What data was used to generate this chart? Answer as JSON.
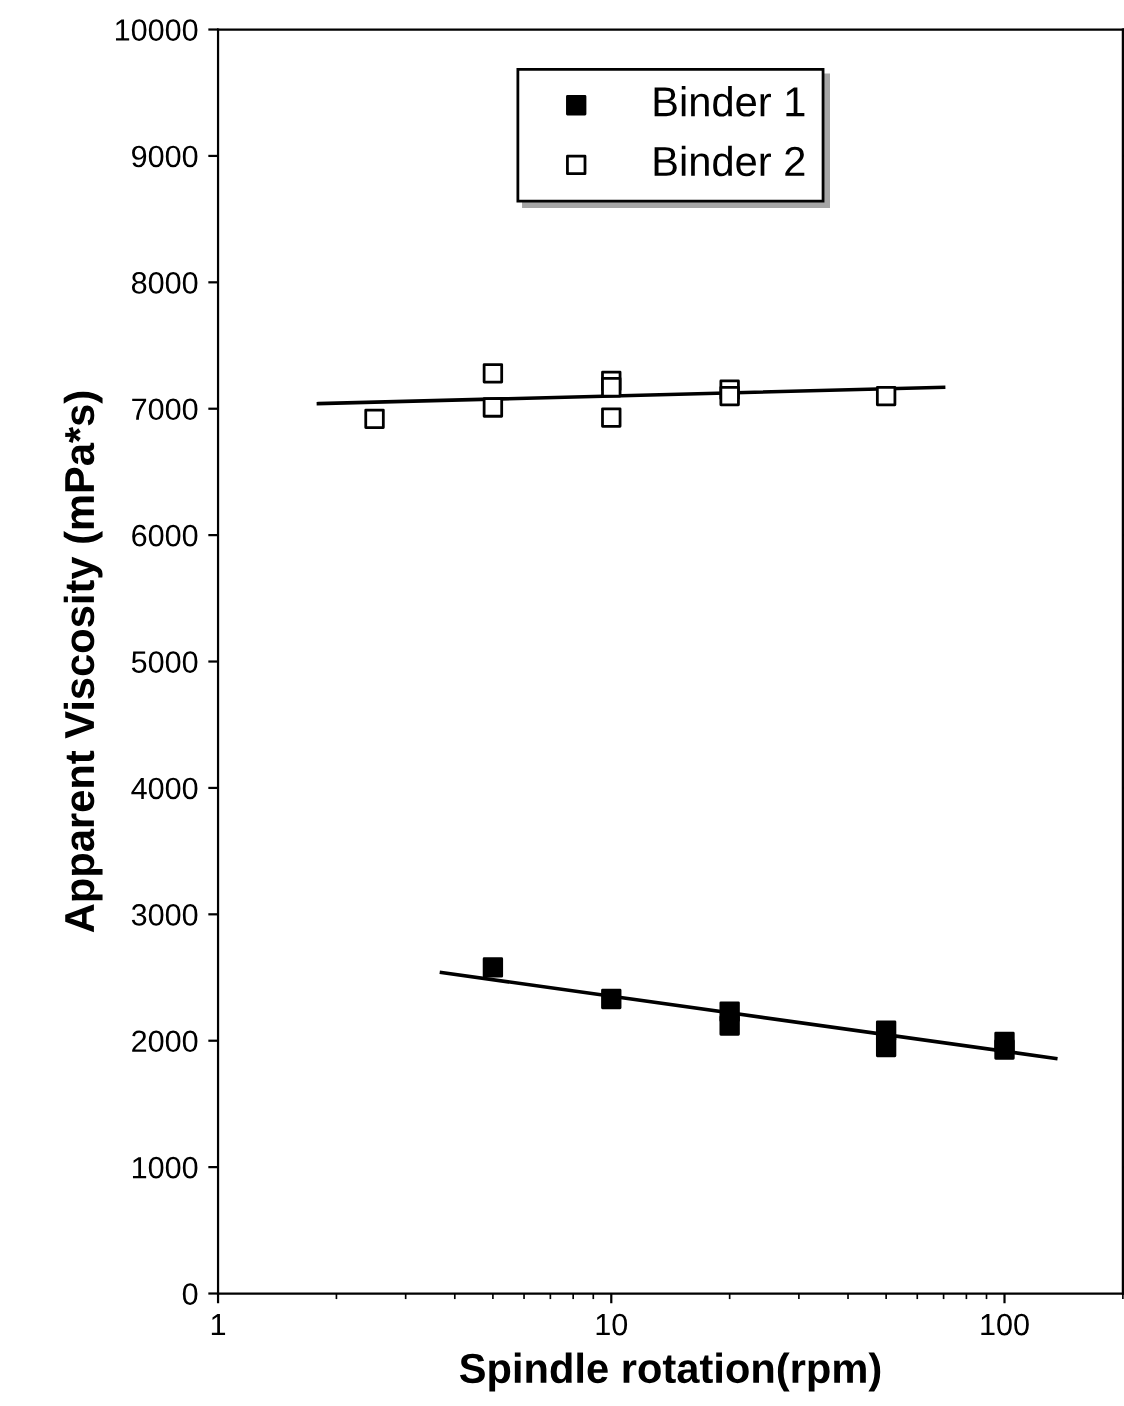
{
  "chart_data": {
    "type": "scatter",
    "xlabel": "Spindle rotation(rpm)",
    "ylabel": "Apparent Viscosity (mPa*s)",
    "log": "x",
    "xlim": [
      1,
      200
    ],
    "xticks": [
      1,
      10,
      100
    ],
    "ylim": [
      0,
      10000
    ],
    "yticks": [
      0,
      1000,
      2000,
      3000,
      4000,
      5000,
      6000,
      7000,
      8000,
      9000,
      10000
    ],
    "grid": false,
    "legend": "top",
    "series": [
      {
        "name": "Binder 1",
        "color": "#000000",
        "marker": "square",
        "x": [
          5,
          10,
          20,
          20,
          50,
          50,
          100,
          100
        ],
        "values": [
          2580,
          2330,
          2230,
          2120,
          2080,
          1950,
          1990,
          1930
        ]
      },
      {
        "name": "Binder 2",
        "color": "#ffffff",
        "marker": "square",
        "x": [
          2.5,
          5,
          5,
          10,
          10,
          10,
          20,
          20,
          50
        ],
        "values": [
          6920,
          7280,
          7010,
          7220,
          7170,
          6930,
          7150,
          7100,
          7100
        ]
      },
      {
        "type": "line",
        "color": "#000000",
        "x": [
          3.7,
          135
        ],
        "values": [
          2540,
          1860
        ]
      },
      {
        "type": "line",
        "color": "#000000",
        "x": [
          1.8,
          70
        ],
        "values": [
          7040,
          7170
        ]
      }
    ]
  }
}
